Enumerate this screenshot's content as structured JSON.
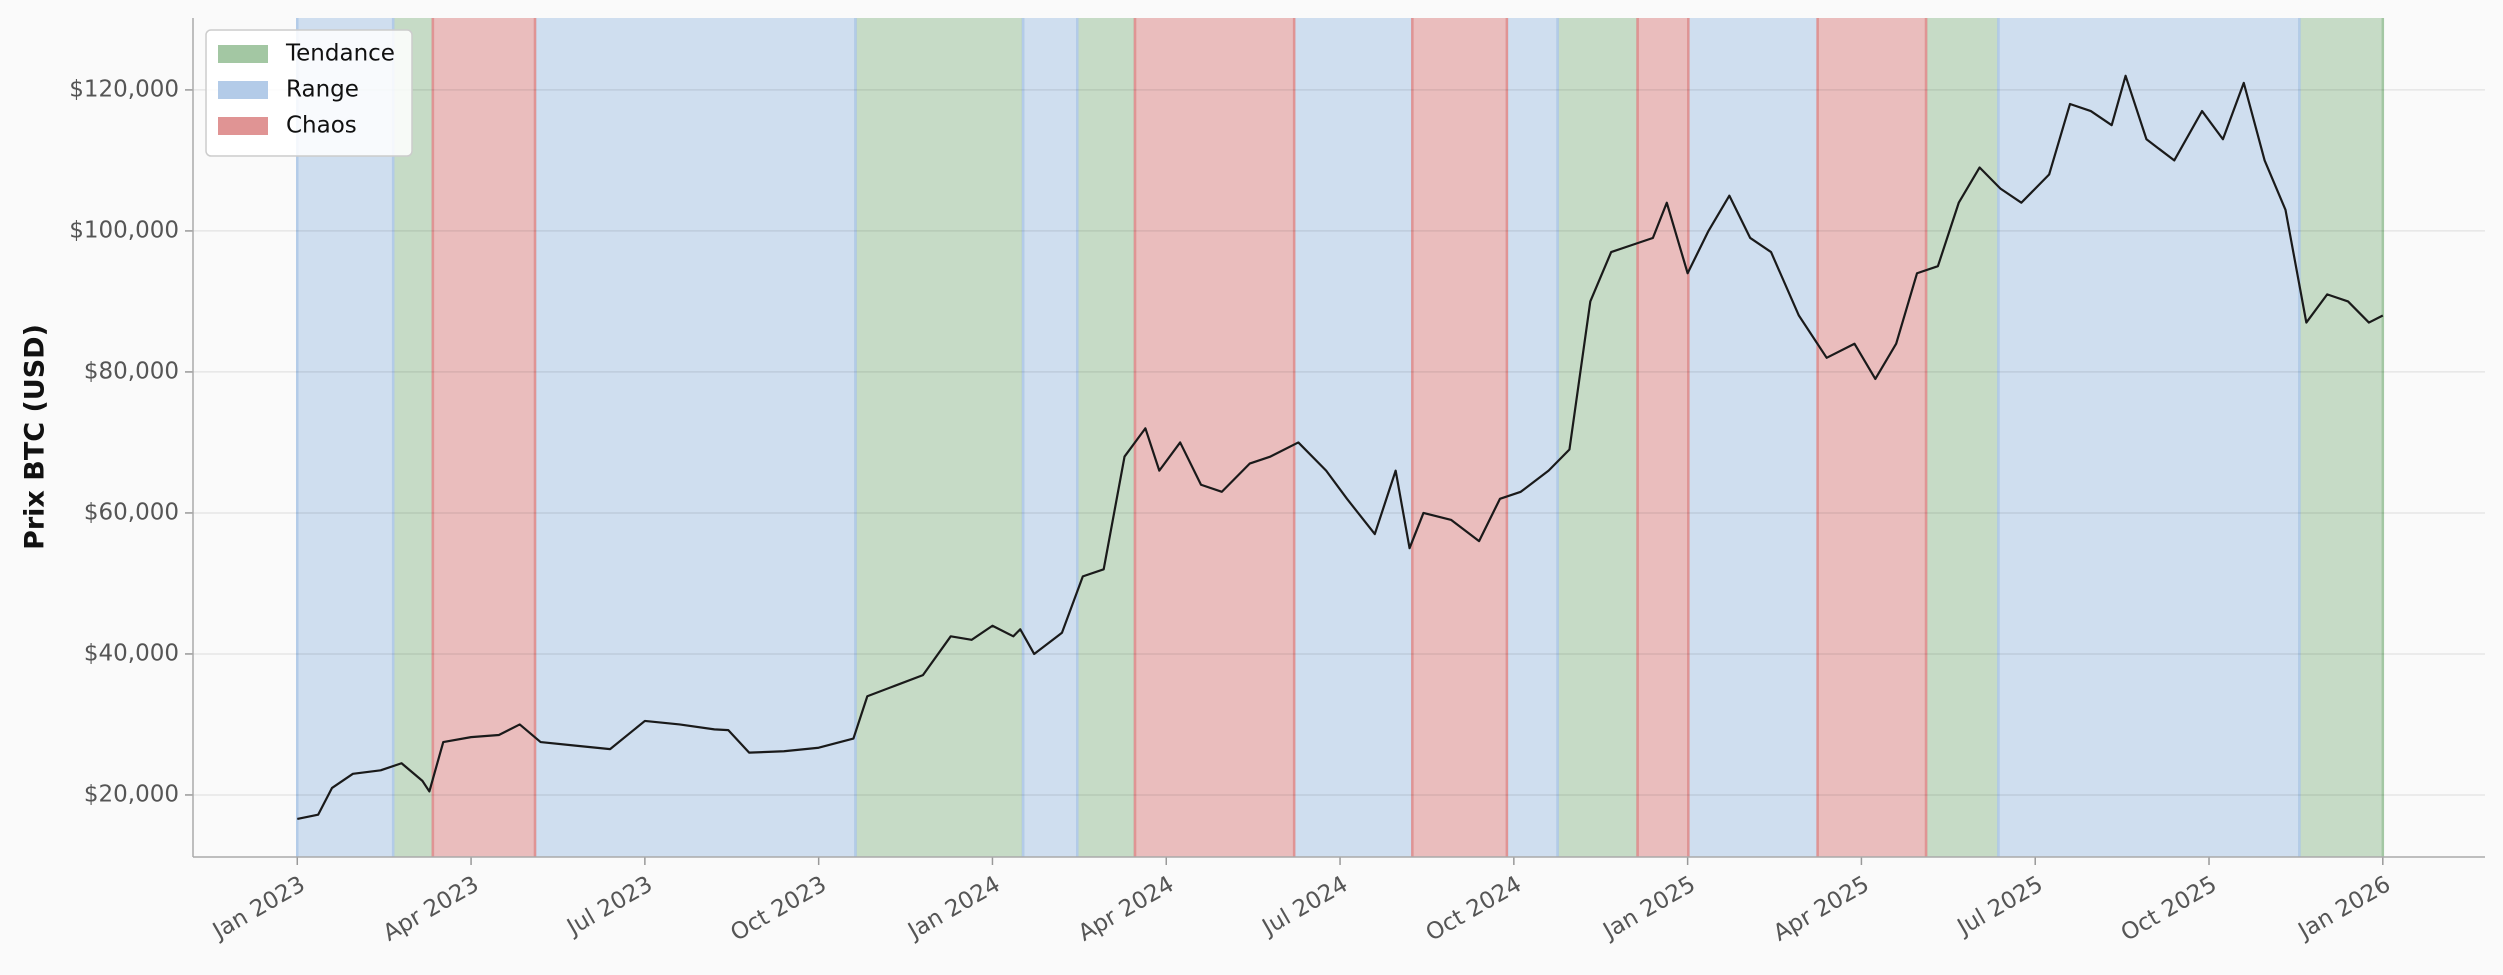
{
  "chart_data": {
    "type": "line",
    "y_label": "Prix BTC (USD)",
    "color": "#1a1a1a",
    "grid": true,
    "legend": "upper left",
    "xlim": [
      2022.85,
      2026.147
    ],
    "xticks": [
      {
        "value": 2023.0,
        "label": "Jan 2023"
      },
      {
        "value": 2023.25,
        "label": "Apr 2023"
      },
      {
        "value": 2023.5,
        "label": "Jul 2023"
      },
      {
        "value": 2023.75,
        "label": "Oct 2023"
      },
      {
        "value": 2024.0,
        "label": "Jan 2024"
      },
      {
        "value": 2024.25,
        "label": "Apr 2024"
      },
      {
        "value": 2024.5,
        "label": "Jul 2024"
      },
      {
        "value": 2024.75,
        "label": "Oct 2024"
      },
      {
        "value": 2025.0,
        "label": "Jan 2025"
      },
      {
        "value": 2025.25,
        "label": "Apr 2025"
      },
      {
        "value": 2025.5,
        "label": "Jul 2025"
      },
      {
        "value": 2025.75,
        "label": "Oct 2025"
      },
      {
        "value": 2026.0,
        "label": "Jan 2026"
      }
    ],
    "ylim": [
      11200,
      130200
    ],
    "yticks": [
      {
        "value": 20000,
        "label": "$20,000"
      },
      {
        "value": 40000,
        "label": "$40,000"
      },
      {
        "value": 60000,
        "label": "$60,000"
      },
      {
        "value": 80000,
        "label": "$80,000"
      },
      {
        "value": 100000,
        "label": "$100,000"
      },
      {
        "value": 120000,
        "label": "$120,000"
      }
    ],
    "regimes": [
      {
        "name": "Tendance",
        "color": "#a3c7a3",
        "periods": [
          [
            2023.138,
            2023.195
          ],
          [
            2023.803,
            2024.044
          ],
          [
            2024.122,
            2024.205
          ],
          [
            2024.813,
            2024.928
          ],
          [
            2025.343,
            2025.447
          ],
          [
            2025.88,
            2026.0
          ]
        ]
      },
      {
        "name": "Range",
        "color": "#b3cbe8",
        "periods": [
          [
            2023.0,
            2023.138
          ],
          [
            2023.342,
            2023.803
          ],
          [
            2024.044,
            2024.122
          ],
          [
            2024.434,
            2024.604
          ],
          [
            2024.74,
            2024.813
          ],
          [
            2025.001,
            2025.187
          ],
          [
            2025.447,
            2025.88
          ]
        ]
      },
      {
        "name": "Chaos",
        "color": "#e09494",
        "periods": [
          [
            2023.195,
            2023.342
          ],
          [
            2024.205,
            2024.434
          ],
          [
            2024.604,
            2024.74
          ],
          [
            2024.928,
            2025.001
          ],
          [
            2025.187,
            2025.343
          ]
        ]
      }
    ],
    "x": [
      2023.0,
      2023.03,
      2023.05,
      2023.08,
      2023.12,
      2023.15,
      2023.18,
      2023.19,
      2023.21,
      2023.25,
      2023.29,
      2023.32,
      2023.35,
      2023.4,
      2023.45,
      2023.5,
      2023.55,
      2023.6,
      2023.62,
      2023.65,
      2023.7,
      2023.75,
      2023.8,
      2023.82,
      2023.86,
      2023.9,
      2023.94,
      2023.97,
      2024.0,
      2024.03,
      2024.04,
      2024.06,
      2024.1,
      2024.13,
      2024.16,
      2024.19,
      2024.22,
      2024.24,
      2024.27,
      2024.3,
      2024.33,
      2024.37,
      2024.4,
      2024.44,
      2024.48,
      2024.51,
      2024.55,
      2024.58,
      2024.6,
      2024.62,
      2024.66,
      2024.7,
      2024.73,
      2024.76,
      2024.8,
      2024.83,
      2024.86,
      2024.89,
      2024.92,
      2024.95,
      2024.97,
      2025.0,
      2025.03,
      2025.06,
      2025.09,
      2025.12,
      2025.16,
      2025.2,
      2025.24,
      2025.27,
      2025.3,
      2025.33,
      2025.36,
      2025.39,
      2025.42,
      2025.45,
      2025.48,
      2025.52,
      2025.55,
      2025.58,
      2025.61,
      2025.63,
      2025.66,
      2025.7,
      2025.74,
      2025.77,
      2025.8,
      2025.83,
      2025.86,
      2025.89,
      2025.92,
      2025.95,
      2025.98,
      2026.0
    ],
    "values": [
      16600,
      17200,
      21000,
      23000,
      23500,
      24500,
      22000,
      20500,
      27500,
      28200,
      28500,
      30000,
      27500,
      27000,
      26500,
      30500,
      30000,
      29300,
      29200,
      26000,
      26200,
      26700,
      28000,
      34000,
      35500,
      37000,
      42500,
      42000,
      44000,
      42500,
      43500,
      40000,
      43000,
      51000,
      52000,
      68000,
      72000,
      66000,
      70000,
      64000,
      63000,
      67000,
      68000,
      70000,
      66000,
      62000,
      57000,
      66000,
      55000,
      60000,
      59000,
      56000,
      62000,
      63000,
      66000,
      69000,
      90000,
      97000,
      98000,
      99000,
      104000,
      94000,
      100000,
      105000,
      99000,
      97000,
      88000,
      82000,
      84000,
      79000,
      84000,
      94000,
      95000,
      104000,
      109000,
      106000,
      104000,
      108000,
      118000,
      117000,
      115000,
      122000,
      113000,
      110000,
      117000,
      113000,
      121000,
      110000,
      103000,
      87000,
      91000,
      90000,
      87000,
      88000
    ]
  }
}
